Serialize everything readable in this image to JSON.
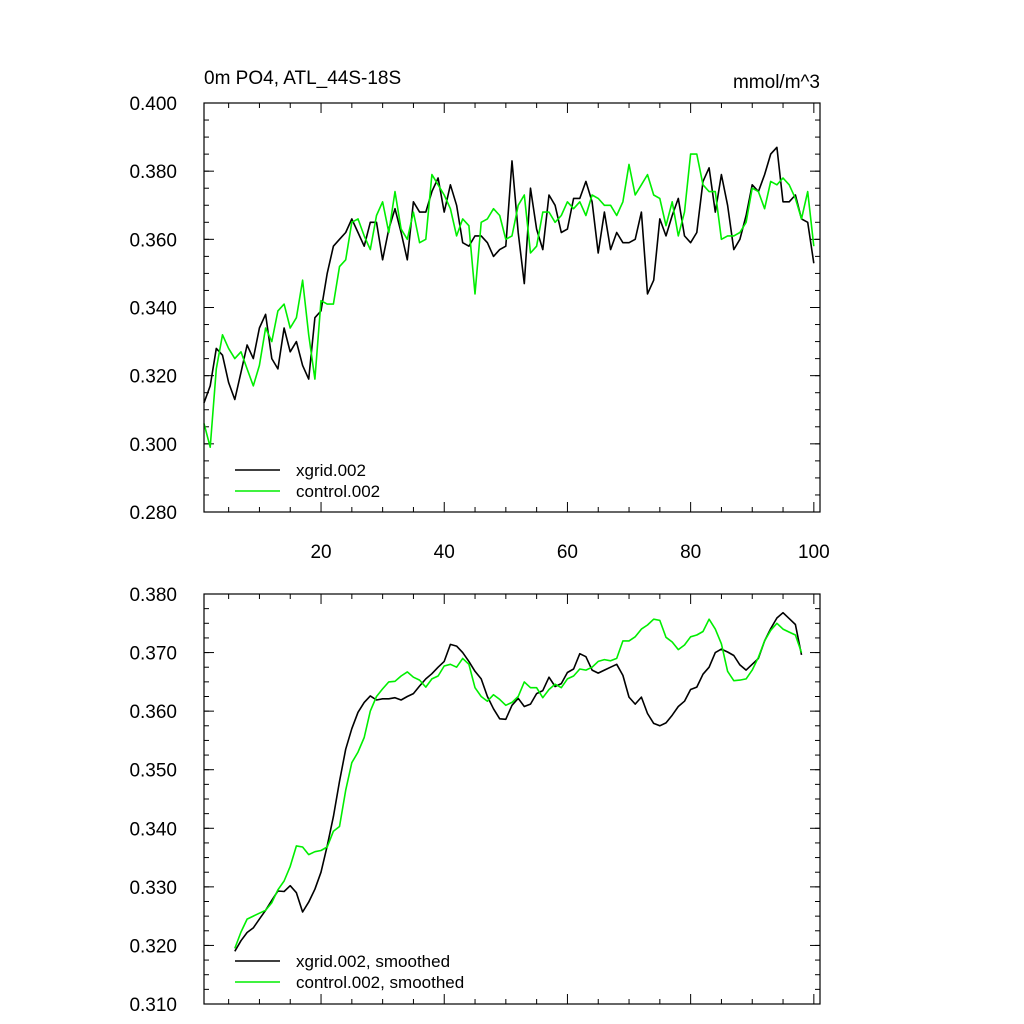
{
  "chart_data": [
    {
      "type": "line",
      "title": "0m PO4, ATL_44S-18S",
      "units": "mmol/m^3",
      "xlim": [
        1,
        101
      ],
      "ylim": [
        0.28,
        0.4
      ],
      "yticks": [
        "0.280",
        "0.300",
        "0.320",
        "0.340",
        "0.360",
        "0.380",
        "0.400"
      ],
      "xticks": [
        "20",
        "40",
        "60",
        "80",
        "100"
      ],
      "legend_position": "bottom-left",
      "series": [
        {
          "name": "xgrid.002",
          "color": "#000000",
          "x_start": 1,
          "values": [
            0.312,
            0.317,
            0.328,
            0.326,
            0.318,
            0.313,
            0.321,
            0.329,
            0.325,
            0.334,
            0.338,
            0.325,
            0.322,
            0.334,
            0.327,
            0.33,
            0.323,
            0.319,
            0.337,
            0.339,
            0.35,
            0.358,
            0.36,
            0.362,
            0.366,
            0.362,
            0.358,
            0.365,
            0.365,
            0.354,
            0.363,
            0.369,
            0.362,
            0.354,
            0.371,
            0.368,
            0.368,
            0.374,
            0.378,
            0.368,
            0.376,
            0.37,
            0.359,
            0.358,
            0.361,
            0.361,
            0.359,
            0.355,
            0.357,
            0.358,
            0.383,
            0.362,
            0.347,
            0.375,
            0.363,
            0.357,
            0.373,
            0.37,
            0.362,
            0.363,
            0.372,
            0.372,
            0.377,
            0.371,
            0.356,
            0.368,
            0.357,
            0.362,
            0.359,
            0.359,
            0.36,
            0.368,
            0.344,
            0.348,
            0.366,
            0.361,
            0.367,
            0.372,
            0.361,
            0.359,
            0.362,
            0.377,
            0.381,
            0.368,
            0.379,
            0.37,
            0.357,
            0.36,
            0.367,
            0.376,
            0.374,
            0.379,
            0.385,
            0.387,
            0.371,
            0.371,
            0.373,
            0.366,
            0.365,
            0.353
          ]
        },
        {
          "name": "control.002",
          "color": "#00ee00",
          "x_start": 1,
          "values": [
            0.306,
            0.299,
            0.322,
            0.332,
            0.328,
            0.325,
            0.327,
            0.322,
            0.317,
            0.323,
            0.334,
            0.33,
            0.339,
            0.341,
            0.334,
            0.337,
            0.348,
            0.332,
            0.319,
            0.342,
            0.341,
            0.341,
            0.352,
            0.354,
            0.365,
            0.366,
            0.361,
            0.357,
            0.367,
            0.371,
            0.362,
            0.374,
            0.363,
            0.36,
            0.368,
            0.359,
            0.36,
            0.379,
            0.376,
            0.373,
            0.369,
            0.361,
            0.366,
            0.364,
            0.344,
            0.365,
            0.366,
            0.369,
            0.367,
            0.36,
            0.361,
            0.37,
            0.373,
            0.356,
            0.358,
            0.368,
            0.368,
            0.365,
            0.367,
            0.371,
            0.369,
            0.371,
            0.367,
            0.373,
            0.372,
            0.37,
            0.37,
            0.367,
            0.371,
            0.382,
            0.373,
            0.376,
            0.379,
            0.373,
            0.372,
            0.364,
            0.371,
            0.361,
            0.368,
            0.385,
            0.385,
            0.376,
            0.374,
            0.374,
            0.36,
            0.361,
            0.361,
            0.362,
            0.365,
            0.375,
            0.374,
            0.369,
            0.377,
            0.376,
            0.378,
            0.376,
            0.372,
            0.366,
            0.374,
            0.358
          ]
        }
      ]
    },
    {
      "type": "line",
      "xlim": [
        1,
        101
      ],
      "ylim": [
        0.31,
        0.38
      ],
      "yticks": [
        "0.310",
        "0.320",
        "0.330",
        "0.340",
        "0.350",
        "0.360",
        "0.370",
        "0.380"
      ],
      "legend_position": "bottom-left",
      "series": [
        {
          "name": "xgrid.002, smoothed",
          "color": "#000000",
          "x_start": 6,
          "values": [
            0.319,
            0.3208,
            0.3222,
            0.323,
            0.3245,
            0.326,
            0.3277,
            0.3293,
            0.3292,
            0.3302,
            0.329,
            0.3257,
            0.3274,
            0.3296,
            0.3325,
            0.337,
            0.342,
            0.348,
            0.3535,
            0.357,
            0.3598,
            0.3615,
            0.3626,
            0.3619,
            0.3621,
            0.3621,
            0.3623,
            0.3619,
            0.3625,
            0.363,
            0.3643,
            0.3655,
            0.3664,
            0.3675,
            0.3685,
            0.3714,
            0.3711,
            0.37,
            0.3685,
            0.3668,
            0.3655,
            0.3625,
            0.3604,
            0.3587,
            0.3586,
            0.361,
            0.3622,
            0.3608,
            0.3612,
            0.363,
            0.3635,
            0.3658,
            0.3642,
            0.3647,
            0.3666,
            0.3672,
            0.3698,
            0.3693,
            0.367,
            0.3665,
            0.367,
            0.3675,
            0.368,
            0.3661,
            0.3624,
            0.3612,
            0.3624,
            0.3596,
            0.3579,
            0.3575,
            0.358,
            0.3593,
            0.3608,
            0.3617,
            0.3637,
            0.3641,
            0.3663,
            0.3675,
            0.37,
            0.3706,
            0.3701,
            0.3695,
            0.3679,
            0.367,
            0.368,
            0.369,
            0.372,
            0.3741,
            0.3759,
            0.3768,
            0.3758,
            0.3748,
            0.3696
          ]
        },
        {
          "name": "control.002, smoothed",
          "color": "#00ee00",
          "x_start": 6,
          "values": [
            0.3195,
            0.3223,
            0.3245,
            0.325,
            0.3255,
            0.326,
            0.3273,
            0.3295,
            0.331,
            0.3335,
            0.337,
            0.3368,
            0.3355,
            0.336,
            0.3362,
            0.3368,
            0.3395,
            0.3403,
            0.3465,
            0.3512,
            0.353,
            0.3555,
            0.36,
            0.3625,
            0.3638,
            0.365,
            0.3651,
            0.366,
            0.3667,
            0.3658,
            0.3653,
            0.3641,
            0.3655,
            0.366,
            0.3677,
            0.368,
            0.3675,
            0.369,
            0.368,
            0.364,
            0.3625,
            0.3617,
            0.3628,
            0.362,
            0.361,
            0.3615,
            0.3625,
            0.365,
            0.364,
            0.364,
            0.3623,
            0.3637,
            0.3646,
            0.364,
            0.3655,
            0.366,
            0.3672,
            0.367,
            0.3675,
            0.3685,
            0.3688,
            0.3686,
            0.369,
            0.372,
            0.372,
            0.3727,
            0.374,
            0.3747,
            0.3757,
            0.3755,
            0.3726,
            0.3718,
            0.3705,
            0.3713,
            0.3727,
            0.373,
            0.3736,
            0.3757,
            0.374,
            0.3715,
            0.3668,
            0.3652,
            0.3653,
            0.3655,
            0.367,
            0.3692,
            0.372,
            0.3738,
            0.375,
            0.374,
            0.3735,
            0.373,
            0.37
          ]
        }
      ]
    }
  ]
}
